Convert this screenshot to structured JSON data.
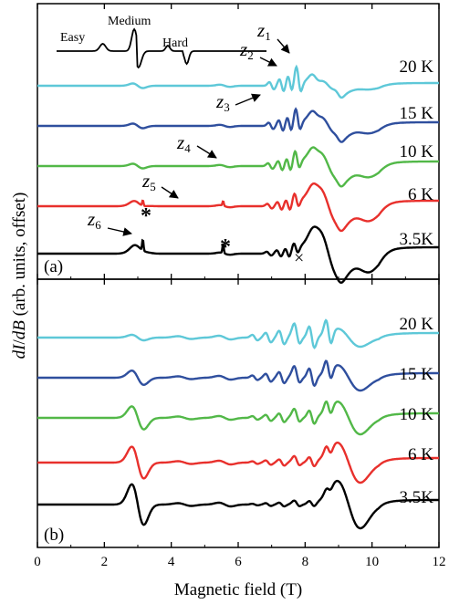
{
  "chart_data": {
    "type": "line",
    "xlabel": "Magnetic field (T)",
    "ylabel_parts": [
      "dI",
      "/",
      "dB",
      " (arb. units, offset)"
    ],
    "xlim": [
      0,
      12
    ],
    "xticks": [
      "0",
      "2",
      "4",
      "6",
      "8",
      "10",
      "12"
    ],
    "colors": {
      "20 K": "#5ec8d8",
      "15 K": "#2f4f9e",
      "10 K": "#52b848",
      "6 K": "#e8302c",
      "3.5K": "#000000"
    },
    "panels": [
      {
        "label": "(a)",
        "series": [
          {
            "name": "20 K",
            "baseline": 94,
            "color": "#5ec8d8"
          },
          {
            "name": "15 K",
            "baseline": 138,
            "color": "#2f4f9e"
          },
          {
            "name": "10 K",
            "baseline": 182,
            "color": "#52b848"
          },
          {
            "name": "6 K",
            "baseline": 226,
            "color": "#e8302c"
          },
          {
            "name": "3.5K",
            "baseline": 278,
            "color": "#000000"
          }
        ],
        "annotations": [
          {
            "text": "z",
            "sub": "1"
          },
          {
            "text": "z",
            "sub": "2"
          },
          {
            "text": "z",
            "sub": "3"
          },
          {
            "text": "z",
            "sub": "4"
          },
          {
            "text": "z",
            "sub": "5"
          },
          {
            "text": "z",
            "sub": "6"
          }
        ],
        "markers": [
          "*",
          "*",
          "×"
        ],
        "inset": {
          "labels": [
            "Easy",
            "Medium",
            "Hard"
          ]
        }
      },
      {
        "label": "(b)",
        "series": [
          {
            "name": "20 K",
            "baseline": 370,
            "color": "#5ec8d8"
          },
          {
            "name": "15 K",
            "baseline": 414,
            "color": "#2f4f9e"
          },
          {
            "name": "10 K",
            "baseline": 458,
            "color": "#52b848"
          },
          {
            "name": "6 K",
            "baseline": 507,
            "color": "#e8302c"
          },
          {
            "name": "3.5K",
            "baseline": 553,
            "color": "#000000"
          }
        ]
      }
    ]
  }
}
